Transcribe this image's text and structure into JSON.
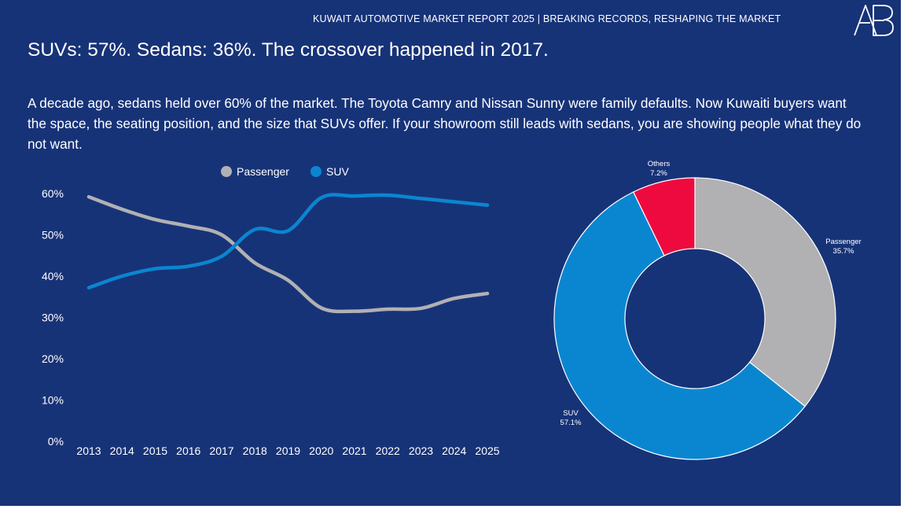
{
  "header": {
    "title": "KUWAIT AUTOMOTIVE MARKET REPORT 2025 | BREAKING RECORDS, RESHAPING THE MARKET",
    "logo_text": "AB"
  },
  "headline": "SUVs: 57%. Sedans: 36%. The crossover happened in 2017.",
  "body_text": "A decade ago, sedans held over 60% of the market. The Toyota Camry and Nissan Sunny were family defaults. Now Kuwaiti buyers want the space, the seating position, and the size that SUVs offer. If your showroom still leads with sedans, you are showing people what they do not want.",
  "colors": {
    "background": "#173378",
    "passenger": "#b1b1b3",
    "suv": "#0a86d1",
    "others": "#ee0a3e"
  },
  "chart_data": [
    {
      "type": "line",
      "x": [
        "2013",
        "2014",
        "2015",
        "2016",
        "2017",
        "2018",
        "2019",
        "2020",
        "2021",
        "2022",
        "2023",
        "2024",
        "2025"
      ],
      "series": [
        {
          "name": "Passenger",
          "values": [
            59.2,
            56.2,
            53.7,
            52.1,
            50.0,
            43.2,
            39.0,
            32.3,
            31.5,
            32.0,
            32.2,
            34.6,
            35.8
          ]
        },
        {
          "name": "SUV",
          "values": [
            37.2,
            40.0,
            41.8,
            42.4,
            44.8,
            51.3,
            51.0,
            59.0,
            59.4,
            59.6,
            58.8,
            58.0,
            57.2
          ]
        }
      ],
      "yticks": [
        "0%",
        "10%",
        "20%",
        "30%",
        "40%",
        "50%",
        "60%"
      ],
      "ylim": [
        0,
        60
      ],
      "legend": "top",
      "grid": false
    },
    {
      "type": "pie",
      "slices": [
        {
          "label": "Passenger",
          "display": "35.7%",
          "value": 35.7
        },
        {
          "label": "SUV",
          "display": "57.1%",
          "value": 57.1
        },
        {
          "label": "Others",
          "display": "7.2%",
          "value": 7.2
        }
      ],
      "hole": "donut"
    }
  ]
}
